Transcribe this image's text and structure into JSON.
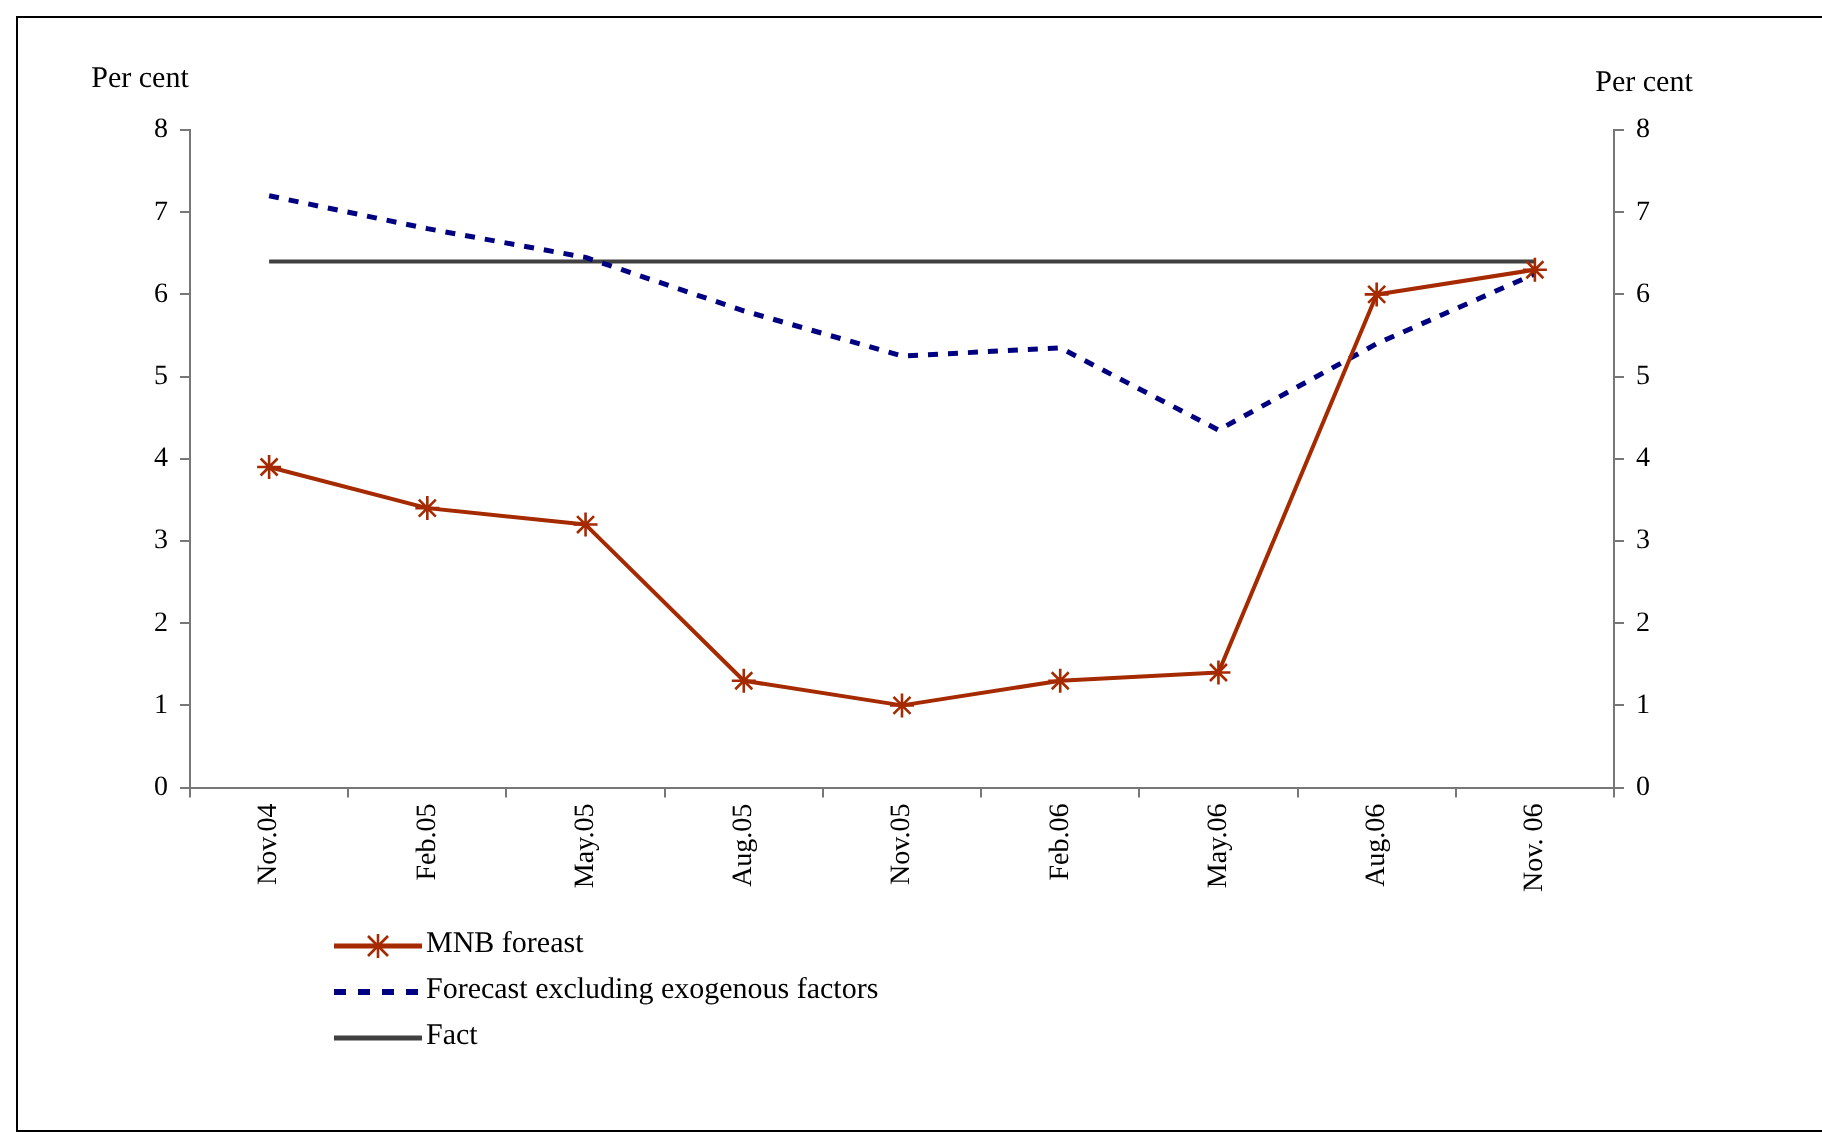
{
  "chart_data": {
    "type": "line",
    "ylabel": "Per cent",
    "y2label": "Per cent",
    "categories": [
      "Nov.04",
      "Feb.05",
      "May.05",
      "Aug.05",
      "Nov.05",
      "Feb.06",
      "May.06",
      "Aug.06",
      "Nov. 06"
    ],
    "series": [
      {
        "name": "MNB foreast",
        "color": "#a52a00",
        "marker": "cross",
        "line_style": "solid",
        "values": [
          3.9,
          3.4,
          3.2,
          1.3,
          1.0,
          1.3,
          1.4,
          6.0,
          6.3
        ]
      },
      {
        "name": "Forecast excluding exogenous factors",
        "color": "#000080",
        "marker": "none",
        "line_style": "dashed",
        "values": [
          7.2,
          6.8,
          6.45,
          5.8,
          5.25,
          5.35,
          4.35,
          5.4,
          6.25
        ]
      },
      {
        "name": "Fact",
        "color": "#404040",
        "marker": "none",
        "line_style": "solid",
        "values": [
          6.4,
          6.4,
          6.4,
          6.4,
          6.4,
          6.4,
          6.4,
          6.4,
          6.4
        ]
      }
    ],
    "ylim": [
      0,
      8
    ],
    "yticks": [
      0,
      1,
      2,
      3,
      4,
      5,
      6,
      7,
      8
    ],
    "y2lim": [
      0,
      8
    ],
    "y2ticks": [
      0,
      1,
      2,
      3,
      4,
      5,
      6,
      7,
      8
    ],
    "grid": false,
    "legend": "bottom left"
  }
}
